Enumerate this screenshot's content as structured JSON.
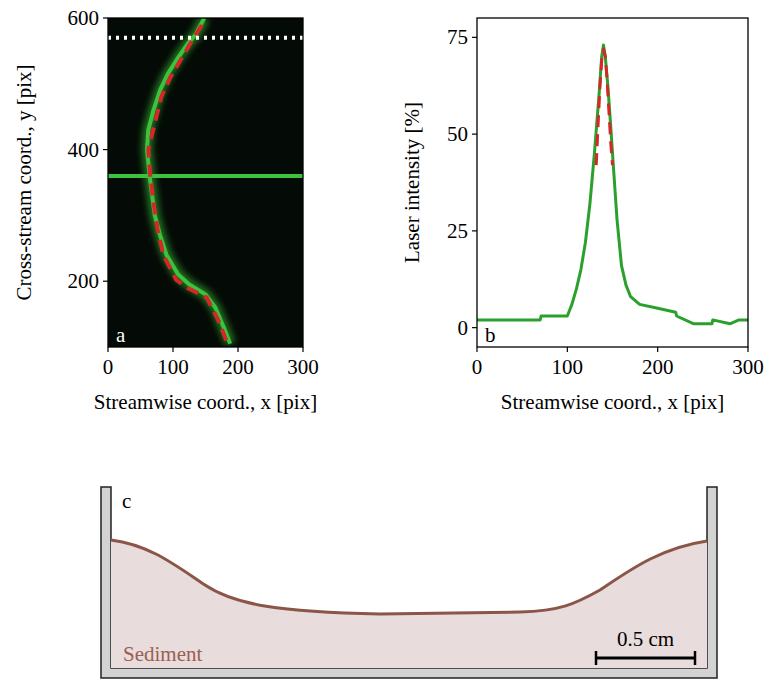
{
  "chart_data": [
    {
      "type": "line",
      "panel_label": "a",
      "xlabel": "Streamwise coord., x [pix]",
      "ylabel": "Cross-stream coord., y [pix]",
      "xlim": [
        0,
        300
      ],
      "ylim": [
        100,
        600
      ],
      "xticks": [
        0,
        100,
        200,
        300
      ],
      "yticks": [
        200,
        400,
        600
      ],
      "series": [
        {
          "color": "#3cc23c",
          "line_style": "solid",
          "x": [
            188,
            178,
            165,
            150,
            125,
            108,
            90,
            80,
            72,
            68,
            64,
            60,
            62,
            70,
            80,
            92,
            108,
            122,
            135,
            148
          ],
          "values": [
            105,
            130,
            160,
            180,
            195,
            210,
            240,
            270,
            300,
            330,
            360,
            400,
            430,
            460,
            490,
            515,
            540,
            560,
            575,
            600
          ]
        },
        {
          "color": "#3cc23c",
          "line_style": "solid",
          "x": [
            0,
            300
          ],
          "values": [
            360,
            360
          ]
        },
        {
          "color": "#d62728",
          "line_style": "dashed",
          "x": [
            182,
            170,
            152,
            122,
            105,
            85,
            76,
            70,
            65,
            62,
            72,
            82,
            96,
            114,
            126,
            146
          ],
          "values": [
            110,
            140,
            175,
            190,
            202,
            240,
            280,
            320,
            360,
            400,
            440,
            480,
            510,
            540,
            560,
            592
          ]
        },
        {
          "color": "#ffffff",
          "line_style": "dotted",
          "x": [
            0,
            300
          ],
          "values": [
            570,
            570
          ]
        }
      ]
    },
    {
      "type": "line",
      "panel_label": "b",
      "xlabel": "Streamwise coord., x [pix]",
      "ylabel": "Laser intensity [%]",
      "xlim": [
        0,
        300
      ],
      "ylim": [
        -5,
        80
      ],
      "xticks": [
        0,
        100,
        200,
        300
      ],
      "yticks": [
        0,
        25,
        50,
        75
      ],
      "series": [
        {
          "color": "#2ca02c",
          "line_style": "solid",
          "x": [
            0,
            70,
            71,
            100,
            105,
            110,
            115,
            120,
            125,
            130,
            135,
            138,
            140,
            142,
            145,
            148,
            150,
            155,
            160,
            165,
            170,
            180,
            200,
            220,
            221,
            240,
            260,
            261,
            280,
            290,
            300
          ],
          "values": [
            2,
            2,
            3,
            3,
            6,
            10,
            15,
            22,
            32,
            45,
            60,
            70,
            73,
            70,
            62,
            52,
            45,
            28,
            16,
            11,
            8,
            6,
            5,
            4,
            3,
            1,
            1,
            2,
            1,
            2,
            2
          ]
        },
        {
          "color": "#d62728",
          "line_style": "dashed",
          "x": [
            132,
            134,
            136,
            138,
            140,
            142,
            144,
            146,
            148,
            150
          ],
          "values": [
            42,
            52,
            62,
            69,
            72,
            70,
            64,
            56,
            48,
            42
          ]
        }
      ]
    }
  ],
  "diagram": {
    "panel_label": "c",
    "sediment_label": "Sediment",
    "scale_bar_label": "0.5 cm"
  }
}
